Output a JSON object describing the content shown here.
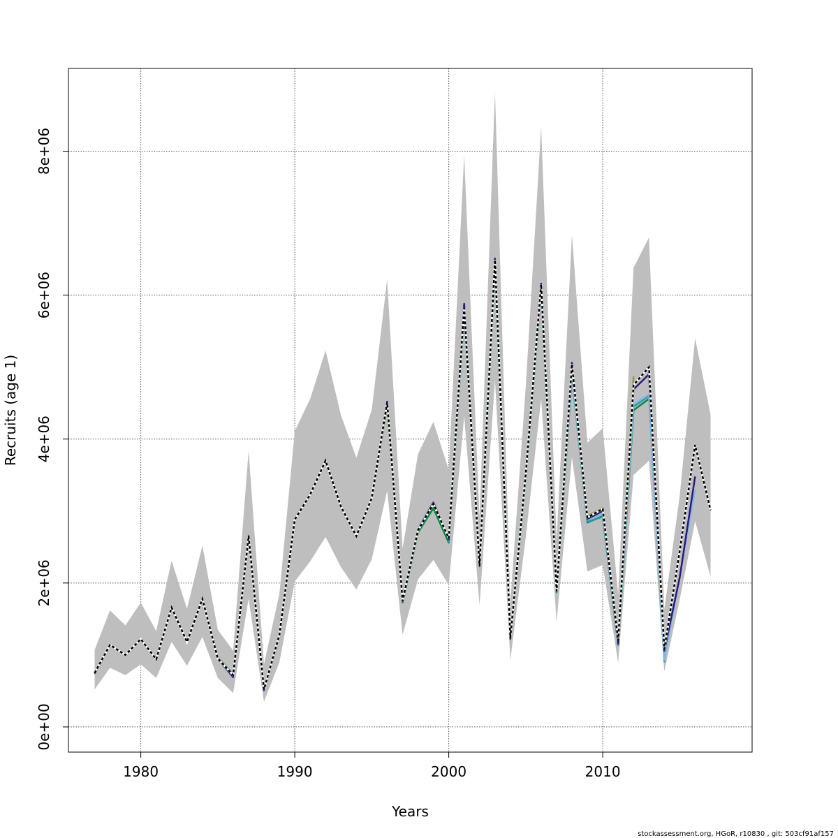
{
  "chart_data": {
    "type": "line",
    "title": "",
    "xlabel": "Years",
    "ylabel": "Recruits (age 1)",
    "xlim": [
      1975.3,
      2019.7
    ],
    "ylim": [
      -350000,
      9150000
    ],
    "x_ticks": [
      {
        "value": 1980,
        "label": "1980"
      },
      {
        "value": 1990,
        "label": "1990"
      },
      {
        "value": 2000,
        "label": "2000"
      },
      {
        "value": 2010,
        "label": "2010"
      }
    ],
    "y_ticks": [
      {
        "value": 0,
        "label": "0e+00"
      },
      {
        "value": 2000000,
        "label": "2e+06"
      },
      {
        "value": 4000000,
        "label": "4e+06"
      },
      {
        "value": 6000000,
        "label": "6e+06"
      },
      {
        "value": 8000000,
        "label": "8e+06"
      }
    ],
    "grid": true,
    "confidence_band": {
      "color": "#bebebe",
      "x": [
        1977,
        1978,
        1979,
        1980,
        1981,
        1982,
        1983,
        1984,
        1985,
        1986,
        1987,
        1988,
        1989,
        1990,
        1991,
        1992,
        1993,
        1994,
        1995,
        1996,
        1997,
        1998,
        1999,
        2000,
        2001,
        2002,
        2003,
        2004,
        2005,
        2006,
        2007,
        2008,
        2009,
        2010,
        2011,
        2012,
        2013,
        2014,
        2015,
        2016,
        2017
      ],
      "lower": [
        520000,
        820000,
        720000,
        870000,
        680000,
        1180000,
        850000,
        1250000,
        680000,
        470000,
        1780000,
        350000,
        900000,
        2020000,
        2300000,
        2640000,
        2220000,
        1910000,
        2330000,
        3280000,
        1280000,
        2050000,
        2320000,
        1970000,
        4320000,
        1690000,
        4820000,
        930000,
        2640000,
        4560000,
        1460000,
        3750000,
        2160000,
        2250000,
        890000,
        3500000,
        3700000,
        770000,
        1770000,
        2860000,
        2090000
      ],
      "upper": [
        1070000,
        1620000,
        1410000,
        1730000,
        1330000,
        2310000,
        1640000,
        2520000,
        1350000,
        1060000,
        3840000,
        870000,
        1850000,
        4110000,
        4560000,
        5230000,
        4330000,
        3740000,
        4410000,
        6220000,
        2480000,
        3790000,
        4240000,
        3570000,
        7950000,
        2910000,
        8830000,
        1740000,
        4730000,
        8340000,
        2590000,
        6840000,
        3950000,
        4150000,
        1840000,
        6380000,
        6800000,
        1630000,
        3220000,
        5400000,
        4340000
      ]
    },
    "series": [
      {
        "color": "#000000",
        "dashed": true,
        "x": [
          1977,
          1978,
          1979,
          1980,
          1981,
          1982,
          1983,
          1984,
          1985,
          1986,
          1987,
          1988,
          1989,
          1990,
          1991,
          1992,
          1993,
          1994,
          1995,
          1996,
          1997,
          1998,
          1999,
          2000,
          2001,
          2002,
          2003,
          2004,
          2005,
          2006,
          2007,
          2008,
          2009,
          2010,
          2011,
          2012,
          2013,
          2014,
          2015,
          2016,
          2017
        ],
        "values": [
          750000,
          1140000,
          1000000,
          1220000,
          940000,
          1660000,
          1180000,
          1780000,
          950000,
          720000,
          2650000,
          520000,
          1280000,
          2880000,
          3230000,
          3700000,
          3060000,
          2650000,
          3180000,
          4510000,
          1750000,
          2730000,
          3100000,
          2620000,
          5820000,
          2240000,
          6490000,
          1240000,
          3520000,
          6150000,
          1890000,
          5040000,
          2910000,
          3030000,
          1200000,
          4750000,
          5000000,
          1080000,
          2450000,
          3920000,
          3010000
        ]
      },
      {
        "color": "#2a1a82",
        "dashed": false,
        "x": [
          1977,
          1978,
          1979,
          1980,
          1981,
          1982,
          1983,
          1984,
          1985,
          1986,
          1987,
          1988,
          1989,
          1990,
          1991,
          1992,
          1993,
          1994,
          1995,
          1996,
          1997,
          1998,
          1999,
          2000,
          2001,
          2002,
          2003,
          2004,
          2005,
          2006,
          2007,
          2008,
          2009,
          2010,
          2011,
          2012,
          2013,
          2014,
          2015,
          2016
        ],
        "values": [
          740000,
          1140000,
          1000000,
          1220000,
          940000,
          1660000,
          1180000,
          1780000,
          950000,
          690000,
          2650000,
          510000,
          1270000,
          2880000,
          3230000,
          3700000,
          3060000,
          2650000,
          3180000,
          4520000,
          1760000,
          2740000,
          3120000,
          2610000,
          5880000,
          2240000,
          6510000,
          1230000,
          3520000,
          6160000,
          1890000,
          5060000,
          2890000,
          3000000,
          1160000,
          4690000,
          4900000,
          1060000,
          2080000,
          3480000
        ]
      },
      {
        "color": "#7fb8e0",
        "dashed": false,
        "x": [
          2008,
          2009,
          2010,
          2011,
          2012,
          2013,
          2014,
          2015,
          2016
        ],
        "values": [
          4950000,
          2880000,
          2960000,
          1170000,
          4480000,
          4620000,
          930000,
          2100000,
          3300000
        ]
      },
      {
        "color": "#1f9aa8",
        "dashed": false,
        "x": [
          2000,
          2001,
          2002,
          2003,
          2004,
          2005,
          2006,
          2007,
          2008,
          2009,
          2010,
          2011,
          2012,
          2013,
          2014
        ],
        "values": [
          2560000,
          5750000,
          2230000,
          6400000,
          1220000,
          3480000,
          6070000,
          1870000,
          4900000,
          2850000,
          2920000,
          1150000,
          4450000,
          4600000,
          900000
        ]
      },
      {
        "color": "#008a3e",
        "dashed": false,
        "x": [
          1977,
          1978,
          1979,
          1980,
          1981,
          1982,
          1983,
          1984,
          1985,
          1986,
          1987,
          1988,
          1989,
          1990,
          1991,
          1992,
          1993,
          1994,
          1995,
          1996,
          1997,
          1998,
          1999,
          2000,
          2001,
          2002,
          2003,
          2004,
          2005,
          2006,
          2007,
          2008,
          2009,
          2010,
          2011,
          2012,
          2013
        ],
        "values": [
          740000,
          1140000,
          1000000,
          1220000,
          940000,
          1660000,
          1180000,
          1780000,
          960000,
          730000,
          2650000,
          520000,
          1280000,
          2880000,
          3230000,
          3700000,
          3060000,
          2650000,
          3180000,
          4470000,
          1730000,
          2700000,
          3040000,
          2560000,
          5760000,
          2230000,
          6420000,
          1220000,
          3500000,
          6080000,
          1870000,
          4920000,
          2840000,
          2930000,
          1140000,
          4400000,
          4560000
        ]
      },
      {
        "color": "#9a9a2a",
        "dashed": false,
        "x": [
          1977,
          1978,
          1979,
          1980,
          1981,
          1982,
          1983,
          1984,
          1985,
          1986,
          1987,
          1988,
          1989,
          1990,
          1991,
          1992,
          1993,
          1994,
          1995,
          1996,
          1997,
          1998,
          1999,
          2000,
          2001,
          2002,
          2003,
          2004,
          2005,
          2006,
          2007,
          2008,
          2009,
          2010,
          2011,
          2012
        ],
        "values": [
          750000,
          1140000,
          1000000,
          1220000,
          940000,
          1660000,
          1180000,
          1780000,
          960000,
          730000,
          2660000,
          520000,
          1280000,
          2890000,
          3230000,
          3700000,
          3060000,
          2650000,
          3180000,
          4480000,
          1740000,
          2720000,
          3060000,
          2590000,
          5780000,
          2240000,
          6430000,
          1240000,
          3510000,
          6100000,
          1890000,
          4960000,
          2930000,
          3040000,
          1220000,
          4870000
        ]
      }
    ],
    "footer": "stockassessment.org, HGoR, r10830 , git: 503cf91af157"
  }
}
